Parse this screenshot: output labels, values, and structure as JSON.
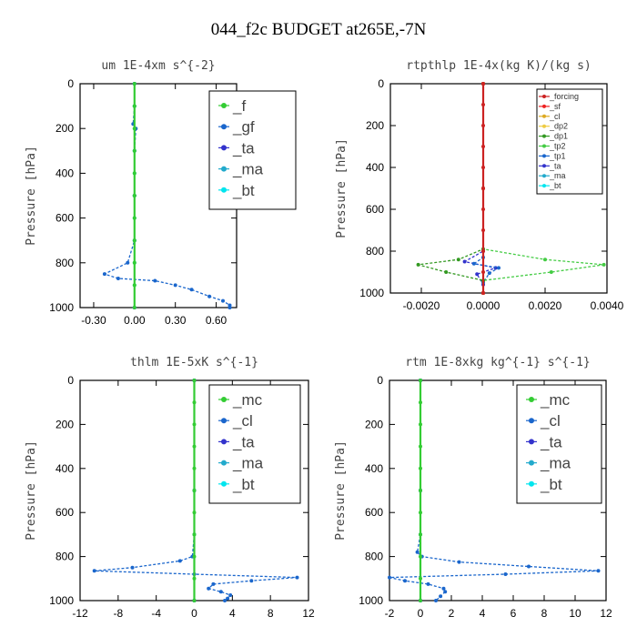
{
  "title": "044_f2c  BUDGET at265E,-7N",
  "chart_data": [
    {
      "type": "line",
      "title": "um   1E-4xm s^{-2}",
      "ylabel": "Pressure [hPa]",
      "xlim": [
        -0.4,
        0.75
      ],
      "ylim": [
        1000,
        0
      ],
      "xticks": [
        -0.3,
        0.0,
        0.3,
        0.6
      ],
      "xticklabels": [
        "-0.30",
        "0.00",
        "0.30",
        "0.60"
      ],
      "yticks": [
        0,
        200,
        400,
        600,
        800,
        1000
      ],
      "legend_position": "top-right",
      "legend_size": "large",
      "series": [
        {
          "name": "_f",
          "color": "#33cc33",
          "points": [
            [
              0,
              0
            ],
            [
              0,
              100
            ],
            [
              0,
              200
            ],
            [
              0,
              300
            ],
            [
              0,
              400
            ],
            [
              0,
              500
            ],
            [
              0,
              600
            ],
            [
              0,
              700
            ],
            [
              0,
              800
            ],
            [
              0,
              900
            ],
            [
              0,
              1000
            ]
          ]
        },
        {
          "name": "_gf",
          "color": "#1a66cc",
          "points": [
            [
              0,
              0
            ],
            [
              0,
              100
            ],
            [
              -0.01,
              180
            ],
            [
              0.01,
              200
            ],
            [
              0,
              300
            ],
            [
              0,
              700
            ],
            [
              -0.05,
              800
            ],
            [
              -0.22,
              850
            ],
            [
              -0.12,
              870
            ],
            [
              0.15,
              880
            ],
            [
              0.3,
              900
            ],
            [
              0.42,
              920
            ],
            [
              0.55,
              950
            ],
            [
              0.65,
              970
            ],
            [
              0.7,
              990
            ],
            [
              0.7,
              1000
            ]
          ]
        },
        {
          "name": "_ta",
          "color": "#3333cc",
          "points": [
            [
              0,
              0
            ],
            [
              0,
              500
            ],
            [
              0,
              1000
            ]
          ]
        },
        {
          "name": "_ma",
          "color": "#22aacc",
          "points": [
            [
              0,
              0
            ],
            [
              0,
              500
            ],
            [
              0,
              1000
            ]
          ]
        },
        {
          "name": "_bt",
          "color": "#00e5ee",
          "points": [
            [
              0,
              0
            ],
            [
              0,
              100
            ],
            [
              0,
              200
            ],
            [
              0,
              300
            ],
            [
              0,
              400
            ],
            [
              0,
              500
            ],
            [
              0,
              600
            ],
            [
              0,
              700
            ],
            [
              0,
              800
            ],
            [
              0,
              900
            ],
            [
              0,
              1000
            ]
          ]
        }
      ]
    },
    {
      "type": "line",
      "title": "rtpthlp   1E-4x(kg K)/(kg s)",
      "ylabel": "Pressure [hPa]",
      "xlim": [
        -0.003,
        0.004
      ],
      "ylim": [
        1000,
        0
      ],
      "xticks": [
        -0.002,
        0.0,
        0.002,
        0.004
      ],
      "xticklabels": [
        "-0.0020",
        "0.0000",
        "0.0020",
        "0.0040"
      ],
      "yticks": [
        0,
        200,
        400,
        600,
        800,
        1000
      ],
      "legend_position": "top-right",
      "legend_size": "small",
      "series": [
        {
          "name": "_forcing",
          "color": "#cc2222",
          "points": [
            [
              0,
              0
            ],
            [
              0,
              100
            ],
            [
              0,
              200
            ],
            [
              0,
              300
            ],
            [
              0,
              400
            ],
            [
              0,
              500
            ],
            [
              0,
              600
            ],
            [
              0,
              700
            ],
            [
              0,
              800
            ],
            [
              0,
              900
            ],
            [
              0,
              1000
            ]
          ]
        },
        {
          "name": "_sf",
          "color": "#ee2222",
          "points": [
            [
              0,
              0
            ],
            [
              0,
              500
            ],
            [
              0,
              1000
            ]
          ]
        },
        {
          "name": "_cl",
          "color": "#ddaa22",
          "points": [
            [
              0,
              0
            ],
            [
              0,
              500
            ],
            [
              0,
              1000
            ]
          ]
        },
        {
          "name": "_dp2",
          "color": "#eecc44",
          "points": [
            [
              0,
              0
            ],
            [
              0,
              500
            ],
            [
              0,
              1000
            ]
          ]
        },
        {
          "name": "_dp1",
          "color": "#339922",
          "points": [
            [
              0,
              0
            ],
            [
              0,
              790
            ],
            [
              -0.0008,
              840
            ],
            [
              -0.0021,
              865
            ],
            [
              -0.0012,
              900
            ],
            [
              0,
              940
            ],
            [
              0,
              1000
            ]
          ]
        },
        {
          "name": "_tp2",
          "color": "#44cc44",
          "points": [
            [
              0,
              0
            ],
            [
              0,
              790
            ],
            [
              0.002,
              840
            ],
            [
              0.0039,
              865
            ],
            [
              0.0022,
              900
            ],
            [
              0,
              940
            ],
            [
              0,
              1000
            ]
          ]
        },
        {
          "name": "_tp1",
          "color": "#1a66cc",
          "points": [
            [
              0,
              0
            ],
            [
              0,
              830
            ],
            [
              -0.0003,
              860
            ],
            [
              0.0005,
              880
            ],
            [
              0.0002,
              905
            ],
            [
              0,
              950
            ],
            [
              0,
              1000
            ]
          ]
        },
        {
          "name": "_ta",
          "color": "#3333cc",
          "points": [
            [
              0,
              0
            ],
            [
              0,
              800
            ],
            [
              -0.0006,
              850
            ],
            [
              0.0004,
              880
            ],
            [
              -0.0002,
              910
            ],
            [
              0,
              960
            ],
            [
              0,
              1000
            ]
          ]
        },
        {
          "name": "_ma",
          "color": "#22aacc",
          "points": [
            [
              0,
              0
            ],
            [
              0,
              500
            ],
            [
              0,
              1000
            ]
          ]
        },
        {
          "name": "_bt",
          "color": "#00e5ee",
          "points": [
            [
              0,
              0
            ],
            [
              0,
              500
            ],
            [
              0,
              1000
            ]
          ]
        }
      ]
    },
    {
      "type": "line",
      "title": "thlm   1E-5xK s^{-1}",
      "ylabel": "Pressure [hPa]",
      "xlim": [
        -12,
        12
      ],
      "ylim": [
        1000,
        0
      ],
      "xticks": [
        -12,
        -8,
        -4,
        0,
        4,
        8,
        12
      ],
      "xticklabels": [
        "-12",
        "-8",
        "-4",
        "0",
        "4",
        "8",
        "12"
      ],
      "yticks": [
        0,
        200,
        400,
        600,
        800,
        1000
      ],
      "legend_position": "top-right",
      "legend_size": "large",
      "series": [
        {
          "name": "_mc",
          "color": "#33cc33",
          "points": [
            [
              0,
              0
            ],
            [
              0,
              100
            ],
            [
              0,
              200
            ],
            [
              0,
              300
            ],
            [
              0,
              400
            ],
            [
              0,
              500
            ],
            [
              0,
              600
            ],
            [
              0,
              700
            ],
            [
              0,
              800
            ],
            [
              0,
              900
            ],
            [
              0,
              1000
            ]
          ]
        },
        {
          "name": "_cl",
          "color": "#1a66cc",
          "points": [
            [
              0,
              0
            ],
            [
              0,
              700
            ],
            [
              -0.2,
              800
            ],
            [
              -1.5,
              820
            ],
            [
              -6.5,
              850
            ],
            [
              -10.5,
              865
            ],
            [
              0,
              880
            ],
            [
              10.8,
              895
            ],
            [
              6,
              910
            ],
            [
              2,
              925
            ],
            [
              1.5,
              945
            ],
            [
              2.8,
              960
            ],
            [
              3.8,
              975
            ],
            [
              3.5,
              990
            ],
            [
              3.2,
              1000
            ]
          ]
        },
        {
          "name": "_ta",
          "color": "#3333cc",
          "points": [
            [
              0,
              0
            ],
            [
              0,
              500
            ],
            [
              0,
              1000
            ]
          ]
        },
        {
          "name": "_ma",
          "color": "#22aacc",
          "points": [
            [
              0,
              0
            ],
            [
              0,
              500
            ],
            [
              0,
              1000
            ]
          ]
        },
        {
          "name": "_bt",
          "color": "#00e5ee",
          "points": [
            [
              0,
              0
            ],
            [
              0,
              500
            ],
            [
              0,
              1000
            ]
          ]
        }
      ]
    },
    {
      "type": "line",
      "title": "rtm   1E-8xkg kg^{-1} s^{-1}",
      "ylabel": "Pressure [hPa]",
      "xlim": [
        -2,
        12
      ],
      "ylim": [
        1000,
        0
      ],
      "xticks": [
        -2,
        0,
        2,
        4,
        6,
        8,
        10,
        12
      ],
      "xticklabels": [
        "-2",
        "0",
        "2",
        "4",
        "6",
        "8",
        "10",
        "12"
      ],
      "yticks": [
        0,
        200,
        400,
        600,
        800,
        1000
      ],
      "legend_position": "top-right",
      "legend_size": "large",
      "series": [
        {
          "name": "_mc",
          "color": "#33cc33",
          "points": [
            [
              0,
              0
            ],
            [
              0,
              100
            ],
            [
              0,
              200
            ],
            [
              0,
              300
            ],
            [
              0,
              400
            ],
            [
              0,
              500
            ],
            [
              0,
              600
            ],
            [
              0,
              700
            ],
            [
              0,
              800
            ],
            [
              0,
              900
            ],
            [
              0,
              1000
            ]
          ]
        },
        {
          "name": "_cl",
          "color": "#1a66cc",
          "points": [
            [
              0,
              0
            ],
            [
              0,
              700
            ],
            [
              -0.2,
              780
            ],
            [
              0.1,
              800
            ],
            [
              2.5,
              825
            ],
            [
              7,
              845
            ],
            [
              11.5,
              865
            ],
            [
              5.5,
              880
            ],
            [
              -2,
              895
            ],
            [
              -1,
              910
            ],
            [
              0.5,
              925
            ],
            [
              1.5,
              945
            ],
            [
              1.6,
              960
            ],
            [
              1.3,
              980
            ],
            [
              1.0,
              1000
            ]
          ]
        },
        {
          "name": "_ta",
          "color": "#3333cc",
          "points": [
            [
              0,
              0
            ],
            [
              0,
              500
            ],
            [
              0,
              1000
            ]
          ]
        },
        {
          "name": "_ma",
          "color": "#22aacc",
          "points": [
            [
              0,
              0
            ],
            [
              0,
              500
            ],
            [
              0,
              1000
            ]
          ]
        },
        {
          "name": "_bt",
          "color": "#00e5ee",
          "points": [
            [
              0,
              0
            ],
            [
              0,
              500
            ],
            [
              0,
              1000
            ]
          ]
        }
      ]
    }
  ]
}
